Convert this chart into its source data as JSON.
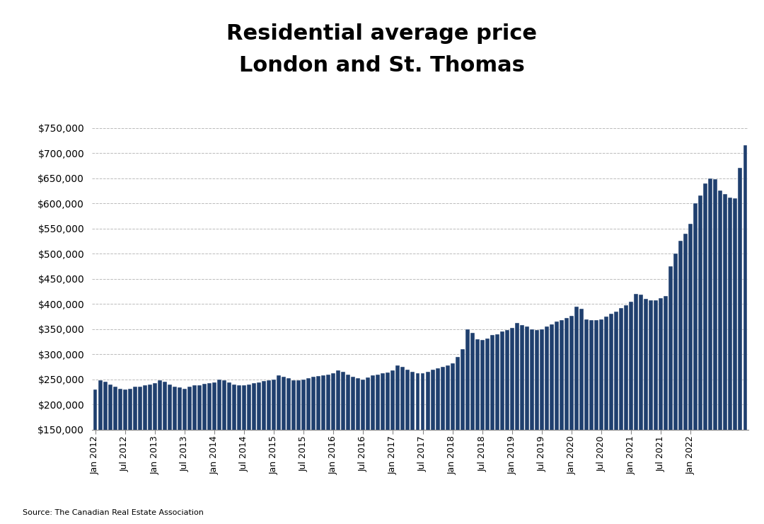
{
  "title_line1": "Residential average price",
  "title_line2": "London and St. Thomas",
  "source": "Source: The Canadian Real Estate Association",
  "bar_color": "#1F3F6E",
  "bar_edge_color": "#FFFFFF",
  "ylim": [
    150000,
    775000
  ],
  "yticks": [
    150000,
    200000,
    250000,
    300000,
    350000,
    400000,
    450000,
    500000,
    550000,
    600000,
    650000,
    700000,
    750000
  ],
  "background_color": "#FFFFFF",
  "grid_color": "#BBBBBB",
  "values": [
    230000,
    248000,
    245000,
    240000,
    235000,
    232000,
    230000,
    232000,
    235000,
    235000,
    238000,
    240000,
    242000,
    248000,
    245000,
    240000,
    236000,
    234000,
    232000,
    235000,
    238000,
    238000,
    241000,
    242000,
    244000,
    250000,
    248000,
    244000,
    240000,
    238000,
    238000,
    240000,
    243000,
    244000,
    247000,
    248000,
    250000,
    258000,
    255000,
    252000,
    248000,
    248000,
    250000,
    252000,
    255000,
    256000,
    258000,
    260000,
    262000,
    268000,
    265000,
    260000,
    255000,
    252000,
    250000,
    254000,
    258000,
    260000,
    262000,
    264000,
    268000,
    278000,
    275000,
    270000,
    265000,
    262000,
    262000,
    265000,
    270000,
    272000,
    275000,
    278000,
    282000,
    295000,
    310000,
    350000,
    342000,
    330000,
    328000,
    332000,
    338000,
    340000,
    345000,
    348000,
    352000,
    362000,
    358000,
    355000,
    350000,
    348000,
    350000,
    355000,
    360000,
    365000,
    368000,
    372000,
    376000,
    395000,
    390000,
    370000,
    368000,
    368000,
    370000,
    375000,
    380000,
    385000,
    392000,
    398000,
    405000,
    420000,
    418000,
    410000,
    408000,
    408000,
    412000,
    416000,
    475000,
    500000,
    525000,
    540000,
    560000,
    600000,
    615000,
    640000,
    650000,
    648000,
    625000,
    618000,
    612000,
    610000,
    670000,
    715000
  ],
  "x_tick_labels": [
    "Jan 2012",
    "Jul 2012",
    "Jan 2013",
    "Jul 2013",
    "Jan 2014",
    "Jul 2014",
    "Jan 2015",
    "Jul 2015",
    "Jan 2016",
    "Jul 2016",
    "Jan 2017",
    "Jul 2017",
    "Jan 2018",
    "Jul 2018",
    "Jan 2019",
    "Jul 2019",
    "Jan 2020",
    "Jul 2020",
    "Jan 2021",
    "Jul 2021",
    "Jan 2022"
  ],
  "x_tick_positions": [
    0,
    6,
    12,
    18,
    24,
    30,
    36,
    42,
    48,
    54,
    60,
    66,
    72,
    78,
    84,
    90,
    96,
    102,
    108,
    114,
    120
  ]
}
